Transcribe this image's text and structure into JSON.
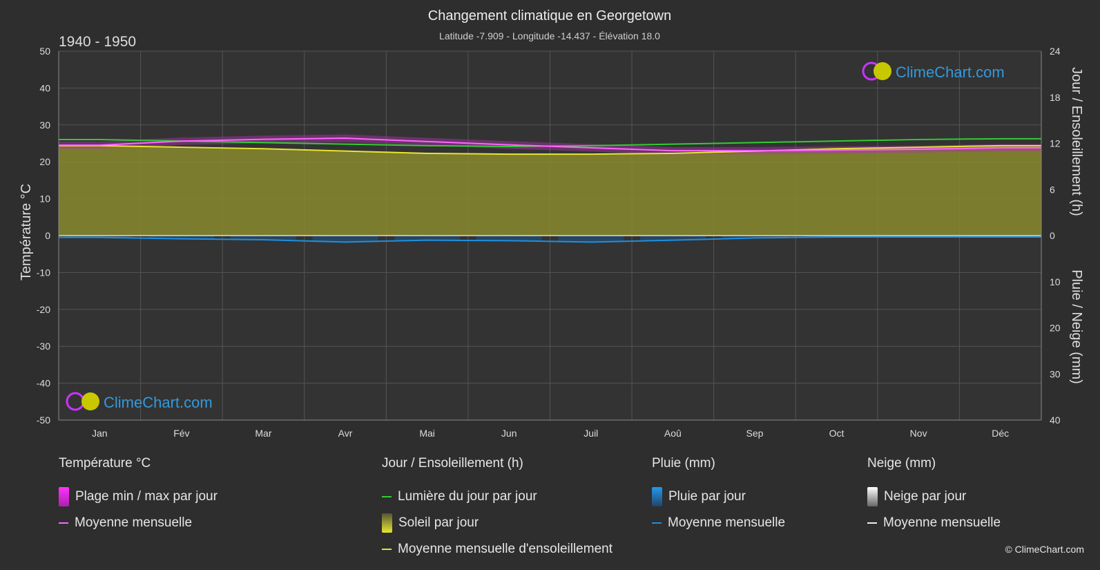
{
  "title": "Changement climatique en Georgetown",
  "subtitle": "Latitude -7.909 - Longitude -14.437 - Élévation 18.0",
  "period": "1940 - 1950",
  "brand": "ClimeChart.com",
  "copyright": "© ClimeChart.com",
  "chart_data": {
    "type": "area",
    "categories": [
      "Jan",
      "Fév",
      "Mar",
      "Avr",
      "Mai",
      "Jun",
      "Juil",
      "Aoû",
      "Sep",
      "Oct",
      "Nov",
      "Déc"
    ],
    "ylabel": "Température °C",
    "ylabel_right_top": "Jour / Ensoleillement (h)",
    "ylabel_right_bottom": "Pluie / Neige (mm)",
    "ylim": [
      -50,
      50
    ],
    "yticks": [
      "50",
      "40",
      "30",
      "20",
      "10",
      "0",
      "-10",
      "-20",
      "-30",
      "-40",
      "-50"
    ],
    "sun_ticks": [
      "24",
      "18",
      "12",
      "6",
      "0"
    ],
    "rain_ticks": [
      "0",
      "10",
      "20",
      "30",
      "40"
    ],
    "grid": true,
    "series": [
      {
        "name": "Lumière du jour par jour",
        "unit": "h",
        "color": "#33cc33",
        "values": [
          12.5,
          12.3,
          12.1,
          11.9,
          11.7,
          11.6,
          11.7,
          11.9,
          12.1,
          12.3,
          12.5,
          12.6
        ]
      },
      {
        "name": "Moyenne mensuelle d'ensoleillement",
        "unit": "h",
        "color": "#e6e633",
        "values": [
          11.7,
          11.5,
          11.3,
          11.0,
          10.7,
          10.6,
          10.6,
          10.7,
          11.0,
          11.3,
          11.5,
          11.7
        ]
      },
      {
        "name": "Moyenne mensuelle",
        "unit": "°C",
        "color": "#ff66ff",
        "values": [
          24.5,
          25.6,
          26.1,
          26.4,
          25.5,
          24.6,
          23.8,
          23.0,
          23.0,
          23.2,
          23.4,
          23.8
        ]
      },
      {
        "name": "Plage min / max par jour",
        "unit": "°C",
        "color": "#cc33cc",
        "min": [
          23.5,
          24.6,
          25.0,
          25.3,
          24.5,
          23.5,
          22.8,
          22.0,
          22.0,
          22.2,
          22.5,
          22.8
        ],
        "max": [
          25.5,
          26.6,
          27.1,
          27.4,
          26.5,
          25.6,
          24.8,
          24.0,
          24.0,
          24.2,
          24.4,
          24.8
        ]
      },
      {
        "name": "Pluie par jour",
        "unit": "mm",
        "color": "#1f8fe0",
        "values": [
          0.4,
          0.7,
          0.9,
          1.4,
          1.0,
          1.1,
          1.4,
          1.0,
          0.5,
          0.3,
          0.3,
          0.3
        ]
      }
    ]
  },
  "legend": {
    "temp": {
      "title": "Température °C",
      "range": "Plage min / max par jour",
      "mean": "Moyenne mensuelle"
    },
    "sun": {
      "title": "Jour / Ensoleillement (h)",
      "daylight": "Lumière du jour par jour",
      "sunshine": "Soleil par jour",
      "sunshine_mean": "Moyenne mensuelle d'ensoleillement"
    },
    "rain": {
      "title": "Pluie (mm)",
      "daily": "Pluie par jour",
      "mean": "Moyenne mensuelle"
    },
    "snow": {
      "title": "Neige (mm)",
      "daily": "Neige par jour",
      "mean": "Moyenne mensuelle"
    }
  }
}
